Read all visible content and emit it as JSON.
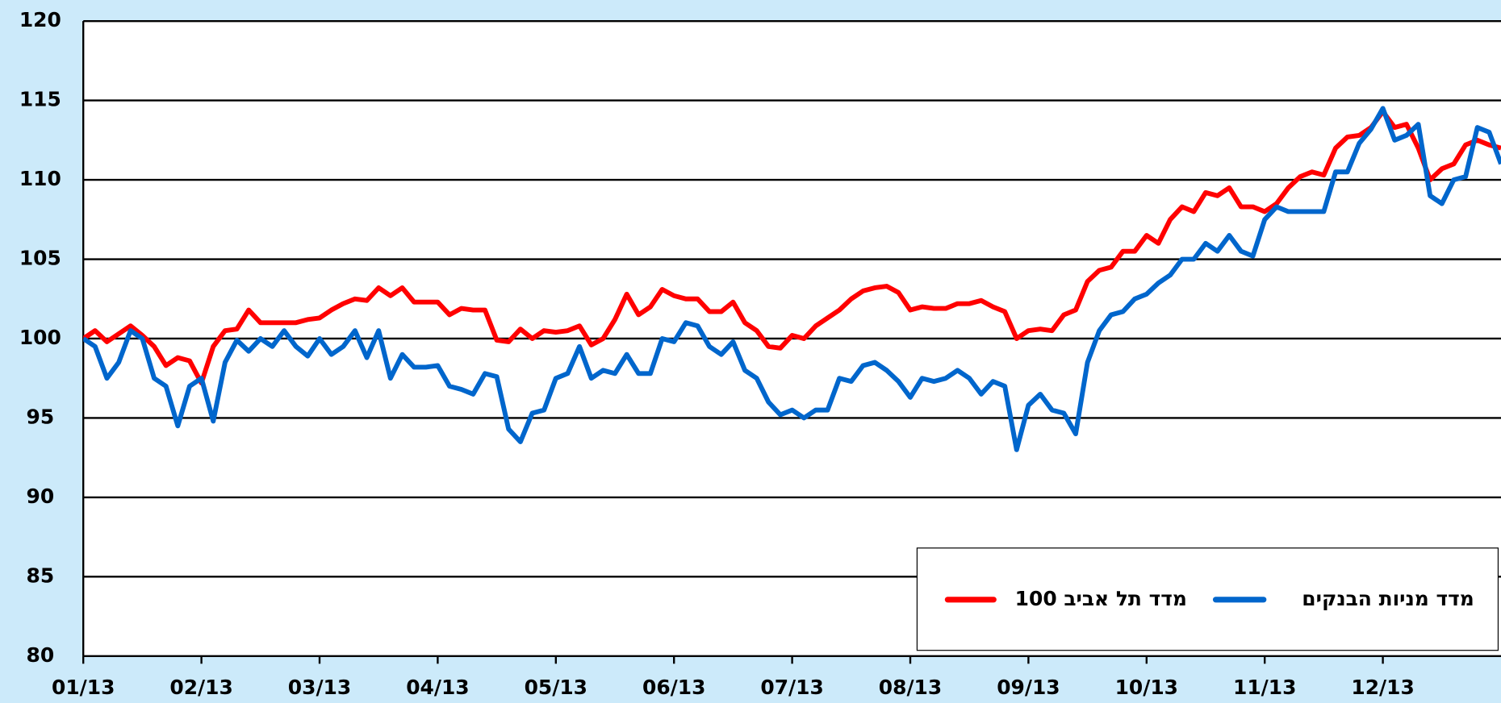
{
  "chart_data": {
    "type": "line",
    "x": [
      1.0,
      1.1,
      1.2,
      1.3,
      1.4,
      1.5,
      1.6,
      1.7,
      1.8,
      1.9,
      2.0,
      2.1,
      2.2,
      2.3,
      2.4,
      2.5,
      2.6,
      2.7,
      2.8,
      2.9,
      3.0,
      3.1,
      3.2,
      3.3,
      3.4,
      3.5,
      3.6,
      3.7,
      3.8,
      3.9,
      4.0,
      4.1,
      4.2,
      4.3,
      4.4,
      4.5,
      4.6,
      4.7,
      4.8,
      4.9,
      5.0,
      5.1,
      5.2,
      5.3,
      5.4,
      5.5,
      5.6,
      5.7,
      5.8,
      5.9,
      6.0,
      6.1,
      6.2,
      6.3,
      6.4,
      6.5,
      6.6,
      6.7,
      6.8,
      6.9,
      7.0,
      7.1,
      7.2,
      7.3,
      7.4,
      7.5,
      7.6,
      7.7,
      7.8,
      7.9,
      8.0,
      8.1,
      8.2,
      8.3,
      8.4,
      8.5,
      8.6,
      8.7,
      8.8,
      8.9,
      9.0,
      9.1,
      9.2,
      9.3,
      9.4,
      9.5,
      9.6,
      9.7,
      9.8,
      9.9,
      10.0,
      10.1,
      10.2,
      10.3,
      10.4,
      10.5,
      10.6,
      10.7,
      10.8,
      10.9,
      11.0,
      11.1,
      11.2,
      11.3,
      11.4,
      11.5,
      11.6,
      11.7,
      11.8,
      11.9,
      12.0,
      12.1,
      12.2,
      12.3,
      12.4,
      12.5,
      12.6,
      12.7,
      12.8,
      12.9,
      13.0
    ],
    "series": [
      {
        "name": "מדד תל אביב 100",
        "color": "#ff0000",
        "values": [
          100,
          100.5,
          99.8,
          100.3,
          100.8,
          100.2,
          99.5,
          98.3,
          98.8,
          98.6,
          97.2,
          99.5,
          100.5,
          100.6,
          101.8,
          101,
          101,
          101,
          101,
          101.2,
          101.3,
          101.8,
          102.2,
          102.5,
          102.4,
          103.2,
          102.7,
          103.2,
          102.3,
          102.3,
          102.3,
          101.5,
          101.9,
          101.8,
          101.8,
          99.9,
          99.8,
          100.6,
          100,
          100.5,
          100.4,
          100.5,
          100.8,
          99.6,
          100,
          101.2,
          102.8,
          101.5,
          102,
          103.1,
          102.7,
          102.5,
          102.5,
          101.7,
          101.7,
          102.3,
          101,
          100.5,
          99.5,
          99.4,
          100.2,
          100,
          100.8,
          101.3,
          101.8,
          102.5,
          103,
          103.2,
          103.3,
          102.9,
          101.8,
          102,
          101.9,
          101.9,
          102.2,
          102.2,
          102.4,
          102,
          101.7,
          100,
          100.5,
          100.6,
          100.5,
          101.5,
          101.8,
          103.6,
          104.3,
          104.5,
          105.5,
          105.5,
          106.5,
          106,
          107.5,
          108.3,
          108,
          109.2,
          109,
          109.5,
          108.3,
          108.3,
          108,
          108.5,
          109.5,
          110.2,
          110.5,
          110.3,
          112,
          112.7,
          112.8,
          113.3,
          114.3,
          113.3,
          113.5,
          112,
          110,
          110.7,
          111,
          112.2,
          112.5,
          112.2,
          112
        ]
      },
      {
        "name": "מדד מניות הבנקים",
        "color": "#0066cc",
        "values": [
          100,
          99.5,
          97.5,
          98.5,
          100.5,
          100,
          97.5,
          97,
          94.5,
          97,
          97.5,
          94.8,
          98.5,
          99.9,
          99.2,
          100,
          99.5,
          100.5,
          99.5,
          98.9,
          100,
          99,
          99.5,
          100.5,
          98.8,
          100.5,
          97.5,
          99,
          98.2,
          98.2,
          98.3,
          97,
          96.8,
          96.5,
          97.8,
          97.6,
          94.3,
          93.5,
          95.3,
          95.5,
          97.5,
          97.8,
          99.5,
          97.5,
          98,
          97.8,
          99,
          97.8,
          97.8,
          100,
          99.8,
          101,
          100.8,
          99.5,
          99,
          99.8,
          98,
          97.5,
          96,
          95.2,
          95.5,
          95,
          95.5,
          95.5,
          97.5,
          97.3,
          98.3,
          98.5,
          98,
          97.3,
          96.3,
          97.5,
          97.3,
          97.5,
          98,
          97.5,
          96.5,
          97.3,
          97,
          93,
          95.8,
          96.5,
          95.5,
          95.3,
          94,
          98.5,
          100.5,
          101.5,
          101.7,
          102.5,
          102.8,
          103.5,
          104,
          105,
          105,
          106,
          105.5,
          106.5,
          105.5,
          105.2,
          107.5,
          108.3,
          108,
          108,
          108,
          108,
          110.5,
          110.5,
          112.3,
          113.2,
          114.5,
          112.5,
          112.8,
          113.5,
          109,
          108.5,
          110,
          110.2,
          113.3,
          113,
          111
        ]
      }
    ],
    "xlim": [
      1,
      13
    ],
    "xticks": [
      {
        "value": 1,
        "label": "01/13"
      },
      {
        "value": 2,
        "label": "02/13"
      },
      {
        "value": 3,
        "label": "03/13"
      },
      {
        "value": 4,
        "label": "04/13"
      },
      {
        "value": 5,
        "label": "05/13"
      },
      {
        "value": 6,
        "label": "06/13"
      },
      {
        "value": 7,
        "label": "07/13"
      },
      {
        "value": 8,
        "label": "08/13"
      },
      {
        "value": 9,
        "label": "09/13"
      },
      {
        "value": 10,
        "label": "10/13"
      },
      {
        "value": 11,
        "label": "11/13"
      },
      {
        "value": 12,
        "label": "12/13"
      }
    ],
    "ylim": [
      80,
      120
    ],
    "yticks": [
      80,
      85,
      90,
      95,
      100,
      105,
      110,
      115,
      120
    ],
    "grid": true,
    "legend": "bottom-right"
  }
}
